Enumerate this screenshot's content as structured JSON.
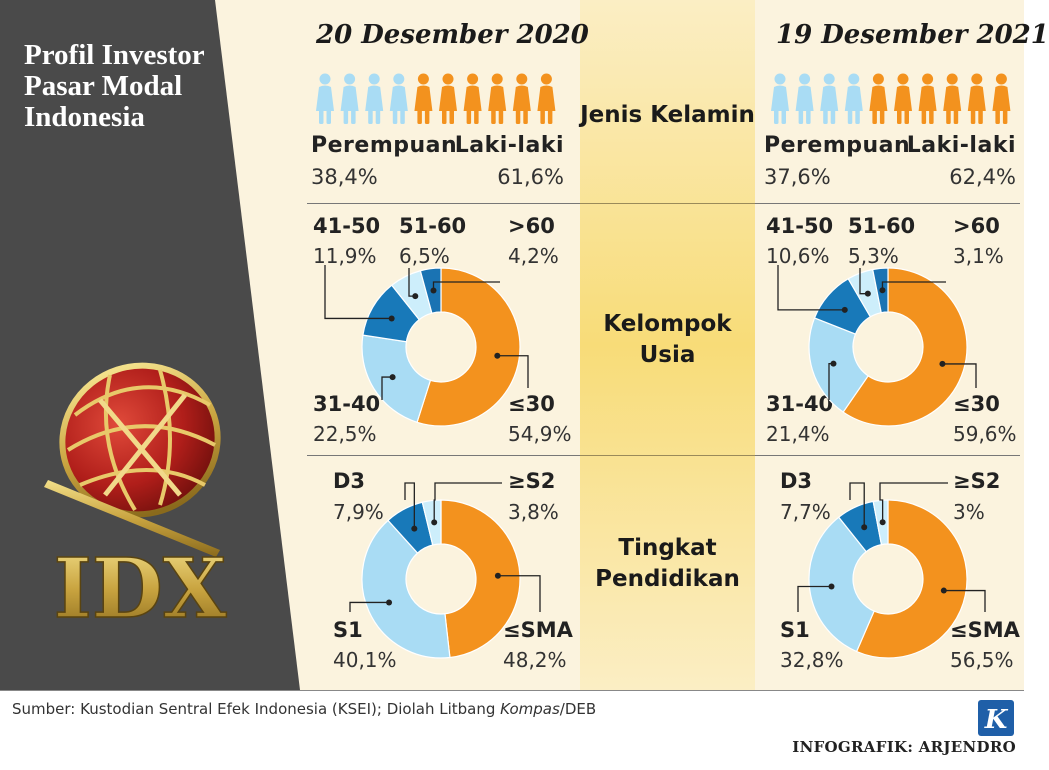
{
  "side_title": "Profil Investor Pasar Modal Indonesia",
  "logo_text": "IDX",
  "columns": [
    {
      "date": "20 Desember 2020"
    },
    {
      "date": "19 Desember 2021"
    }
  ],
  "sections": {
    "gender": "Jenis Kelamin",
    "age": "Kelompok Usia",
    "edu": "Tingkat Pendidikan"
  },
  "source": {
    "prefix": "Sumber: Kustodian Sentral Efek Indonesia (KSEI); Diolah Litbang ",
    "italic": "Kompas",
    "suffix": "/DEB"
  },
  "credit": "INFOGRAFIK: ARJENDRO",
  "colors": {
    "orange": "#f3921e",
    "light_blue": "#a9dcf4",
    "pale_blue": "#cdeefb",
    "mid_blue": "#1879b9",
    "blue": "#1a73b3",
    "dark_panel": "#4a4a4a"
  },
  "chart_data": [
    {
      "type": "pictogram",
      "title": "Jenis Kelamin",
      "period": "20 Desember 2020",
      "categories": [
        "Perempuan",
        "Laki-laki"
      ],
      "labels": [
        "38,4%",
        "61,6%"
      ],
      "values": [
        38.4,
        61.6
      ],
      "icons": [
        4,
        6
      ]
    },
    {
      "type": "donut",
      "title": "Kelompok Usia",
      "period": "20 Desember 2020",
      "categories": [
        "≤30",
        "31-40",
        "41-50",
        "51-60",
        ">60"
      ],
      "labels": [
        "54,9%",
        "22,5%",
        "11,9%",
        "6,5%",
        "4,2%"
      ],
      "values": [
        54.9,
        22.5,
        11.9,
        6.5,
        4.2
      ],
      "colors": [
        "#f3921e",
        "#a9dcf4",
        "#1879b9",
        "#cdeefb",
        "#1a73b3"
      ]
    },
    {
      "type": "donut",
      "title": "Tingkat Pendidikan",
      "period": "20 Desember 2020",
      "categories": [
        "≤SMA",
        "S1",
        "D3",
        "≥S2"
      ],
      "labels": [
        "48,2%",
        "40,1%",
        "7,9%",
        "3,8%"
      ],
      "values": [
        48.2,
        40.1,
        7.9,
        3.8
      ],
      "colors": [
        "#f3921e",
        "#a9dcf4",
        "#1879b9",
        "#cdeefb"
      ]
    },
    {
      "type": "pictogram",
      "title": "Jenis Kelamin",
      "period": "19 Desember 2021",
      "categories": [
        "Perempuan",
        "Laki-laki"
      ],
      "labels": [
        "37,6%",
        "62,4%"
      ],
      "values": [
        37.6,
        62.4
      ],
      "icons": [
        4,
        6
      ]
    },
    {
      "type": "donut",
      "title": "Kelompok Usia",
      "period": "19 Desember 2021",
      "categories": [
        "≤30",
        "31-40",
        "41-50",
        "51-60",
        ">60"
      ],
      "labels": [
        "59,6%",
        "21,4%",
        "10,6%",
        "5,3%",
        "3,1%"
      ],
      "values": [
        59.6,
        21.4,
        10.6,
        5.3,
        3.1
      ],
      "colors": [
        "#f3921e",
        "#a9dcf4",
        "#1879b9",
        "#cdeefb",
        "#1a73b3"
      ]
    },
    {
      "type": "donut",
      "title": "Tingkat Pendidikan",
      "period": "19 Desember 2021",
      "categories": [
        "≤SMA",
        "S1",
        "D3",
        "≥S2"
      ],
      "labels": [
        "56,5%",
        "32,8%",
        "7,7%",
        "3%"
      ],
      "values": [
        56.5,
        32.8,
        7.7,
        3.0
      ],
      "colors": [
        "#f3921e",
        "#a9dcf4",
        "#1879b9",
        "#cdeefb"
      ]
    }
  ]
}
